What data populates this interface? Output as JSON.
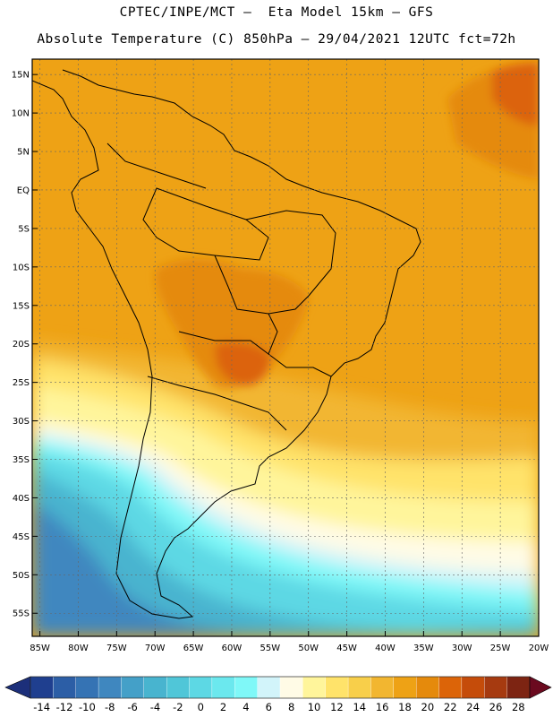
{
  "header": {
    "line1": "CPTEC/INPE/MCT –  Eta Model 15km – GFS",
    "line2": "Absolute Temperature (C) 850hPa – 29/04/2021 12UTC fct=72h"
  },
  "axes": {
    "lat_labels": [
      "15N",
      "10N",
      "5N",
      "EQ",
      "5S",
      "10S",
      "15S",
      "20S",
      "25S",
      "30S",
      "35S",
      "40S",
      "45S",
      "50S",
      "55S"
    ],
    "lon_labels": [
      "85W",
      "80W",
      "75W",
      "70W",
      "65W",
      "60W",
      "55W",
      "50W",
      "45W",
      "40W",
      "35W",
      "30W",
      "25W",
      "20W"
    ]
  },
  "colorbar": {
    "labels": [
      "-14",
      "-12",
      "-10",
      "-8",
      "-6",
      "-4",
      "-2",
      "0",
      "2",
      "4",
      "6",
      "8",
      "10",
      "12",
      "14",
      "16",
      "18",
      "20",
      "22",
      "24",
      "26",
      "28"
    ],
    "colors": [
      "#1f3f8f",
      "#2c5ea6",
      "#3573b4",
      "#3f87bf",
      "#44a0c8",
      "#48b4cf",
      "#50c6d8",
      "#5dd8e4",
      "#6be8ee",
      "#7ff8f8",
      "#d2f4fa",
      "#fffbe6",
      "#fff59b",
      "#ffe36a",
      "#f8cf4a",
      "#f2b630",
      "#eea215",
      "#e58a0c",
      "#dc6408",
      "#c54c0a",
      "#a63a10",
      "#7d2412"
    ],
    "under_color": "#1c2f7a",
    "over_color": "#6b0a1f"
  }
}
